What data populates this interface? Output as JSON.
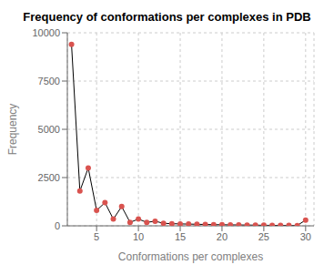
{
  "chart_data": {
    "type": "line",
    "title": "Frequency of conformations per complexes in PDB",
    "xlabel": "Conformations per complexes",
    "ylabel": "Frequency",
    "x": [
      2,
      3,
      4,
      5,
      6,
      7,
      8,
      9,
      10,
      11,
      12,
      13,
      14,
      15,
      16,
      17,
      18,
      19,
      20,
      21,
      22,
      23,
      24,
      25,
      26,
      27,
      28,
      29,
      30
    ],
    "values": [
      9400,
      1800,
      3000,
      800,
      1200,
      350,
      1000,
      180,
      350,
      180,
      240,
      130,
      110,
      100,
      90,
      80,
      70,
      60,
      55,
      50,
      45,
      40,
      35,
      30,
      25,
      22,
      18,
      14,
      300
    ],
    "xlim": [
      1.5,
      31
    ],
    "ylim": [
      0,
      10000
    ],
    "xticks": [
      5,
      10,
      15,
      20,
      25,
      30
    ],
    "yticks": [
      0,
      2500,
      5000,
      7500,
      10000
    ],
    "grid": true,
    "color": "black",
    "marker": "circle",
    "colors": [
      "#d9534f",
      "#d9534f",
      "#d9534f",
      "#d9534f",
      "#d9534f",
      "#d9534f",
      "#d9534f",
      "#d9534f",
      "#d9534f",
      "#d9534f",
      "#d9534f",
      "#d9534f",
      "#d9534f",
      "#d9534f",
      "#d9534f",
      "#d9534f",
      "#d9534f",
      "#d9534f",
      "#d9534f",
      "#d9534f",
      "#d9534f",
      "#d9534f",
      "#d9534f",
      "#d9534f",
      "#d9534f",
      "#d9534f",
      "#d9534f",
      "#d9534f",
      "#d9534f"
    ]
  }
}
